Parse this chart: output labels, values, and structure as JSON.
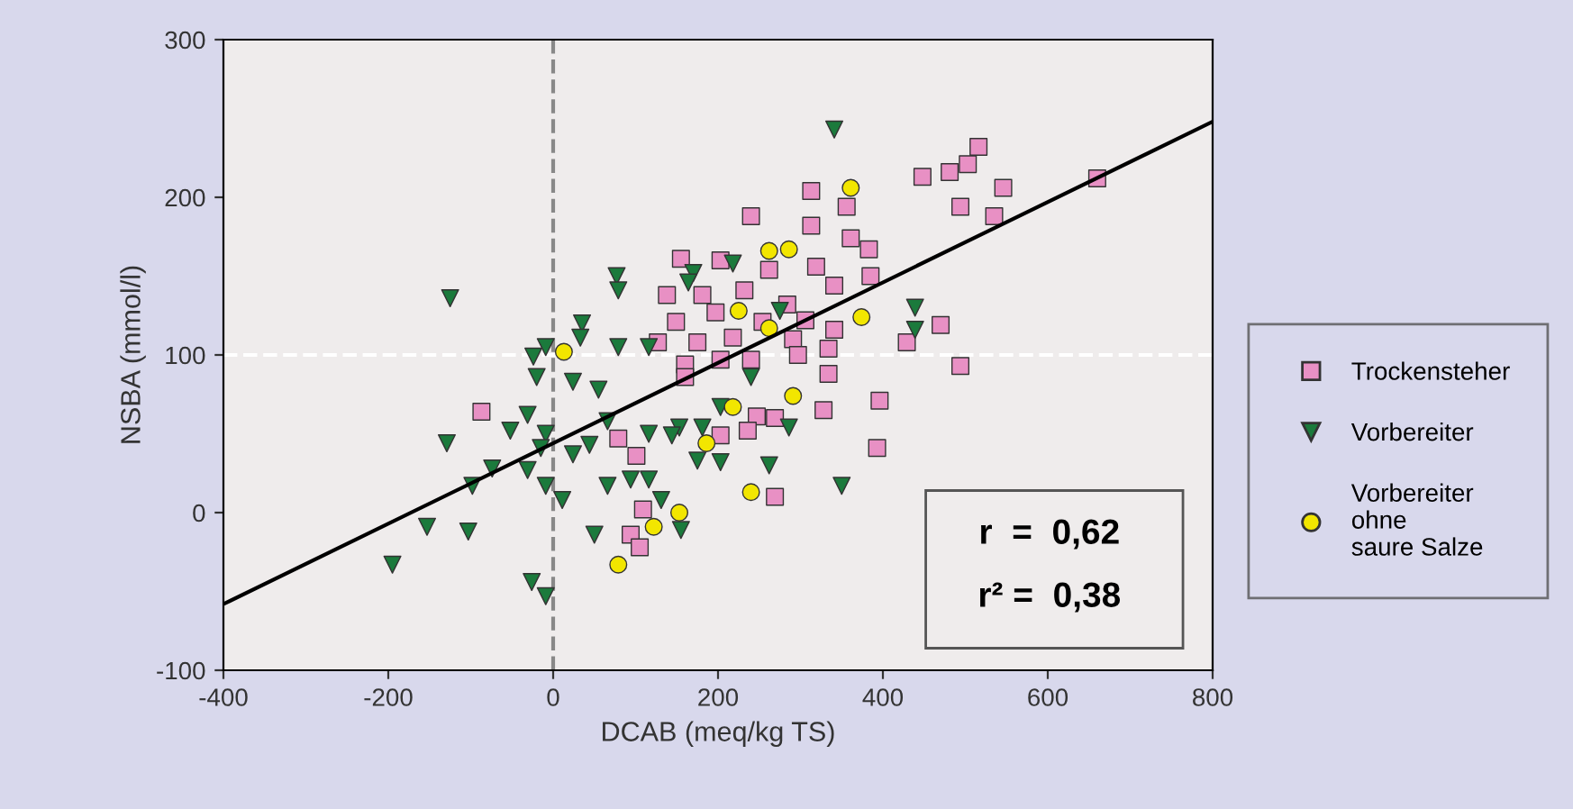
{
  "chart_data": {
    "type": "scatter",
    "xlabel": "DCAB (meq/kg TS)",
    "ylabel": "NSBA (mmol/l)",
    "xlim": [
      -400,
      800
    ],
    "ylim": [
      -100,
      300
    ],
    "xticks": [
      -400,
      -200,
      0,
      200,
      400,
      600,
      800
    ],
    "yticks": [
      -100,
      0,
      100,
      200,
      300
    ],
    "grid": false,
    "legend": "right",
    "series": [
      {
        "name": "Trockensteher",
        "color": "#e890c4",
        "marker": "square",
        "x": [
          -87,
          313,
          356,
          240,
          313,
          361,
          383,
          155,
          203,
          262,
          319,
          385,
          138,
          181,
          232,
          284,
          341,
          149,
          197,
          254,
          306,
          341,
          127,
          175,
          218,
          291,
          334,
          160,
          203,
          334,
          160,
          240,
          297,
          247,
          269,
          328,
          79,
          203,
          236,
          101,
          269,
          109,
          94,
          105,
          393,
          516,
          503,
          481,
          448,
          546,
          660,
          494,
          535,
          470,
          429,
          494,
          396
        ],
        "values": [
          64,
          204,
          194,
          188,
          182,
          174,
          167,
          161,
          160,
          154,
          156,
          150,
          138,
          138,
          141,
          132,
          144,
          121,
          127,
          121,
          122,
          116,
          108,
          108,
          111,
          110,
          104,
          94,
          97,
          88,
          86,
          97,
          100,
          61,
          60,
          65,
          47,
          49,
          52,
          36,
          10,
          2,
          -14,
          -22,
          41,
          232,
          221,
          216,
          213,
          206,
          212,
          194,
          188,
          119,
          108,
          93,
          71
        ]
      },
      {
        "name": "Vorbereiter",
        "color": "#1b7a3c",
        "marker": "triangle",
        "x": [
          -125,
          77,
          79,
          35,
          33,
          -24,
          -9,
          79,
          116,
          -20,
          24,
          55,
          -31,
          -52,
          -129,
          -9,
          -15,
          24,
          44,
          66,
          116,
          153,
          -74,
          -98,
          -31,
          -9,
          11,
          66,
          94,
          116,
          -153,
          -103,
          -195,
          -26,
          -9,
          50,
          155,
          341,
          170,
          164,
          218,
          275,
          240,
          262,
          350,
          203,
          175,
          144,
          131,
          286,
          203,
          181,
          439,
          439
        ],
        "values": [
          136,
          150,
          141,
          120,
          111,
          99,
          105,
          105,
          105,
          86,
          83,
          78,
          62,
          52,
          44,
          50,
          41,
          37,
          43,
          58,
          50,
          54,
          28,
          17,
          27,
          17,
          8,
          17,
          21,
          21,
          -9,
          -12,
          -33,
          -44,
          -53,
          -14,
          -11,
          243,
          152,
          146,
          158,
          128,
          86,
          30,
          17,
          32,
          33,
          49,
          8,
          54,
          67,
          54,
          130,
          116
        ]
      },
      {
        "name": "Vorbereiter\nohne\nsaure Salze",
        "color": "#f2e600",
        "marker": "circle",
        "x": [
          361,
          262,
          286,
          225,
          262,
          374,
          13,
          291,
          218,
          186,
          240,
          153,
          122,
          79
        ],
        "values": [
          206,
          166,
          167,
          128,
          117,
          124,
          102,
          74,
          67,
          44,
          13,
          0,
          -9,
          -33
        ]
      },
      {
        "type": "line",
        "color": "#000000",
        "x": [
          -400,
          800
        ],
        "values": [
          -58,
          248
        ]
      }
    ],
    "ref_lines": [
      {
        "axis": "x",
        "value": 0,
        "color": "#888888",
        "line_style": "dashed"
      },
      {
        "axis": "y",
        "value": 100,
        "color": "#ffffff",
        "line_style": "dashed"
      }
    ],
    "annotations": [
      "r  =  0,62",
      "r² =  0,38"
    ]
  }
}
